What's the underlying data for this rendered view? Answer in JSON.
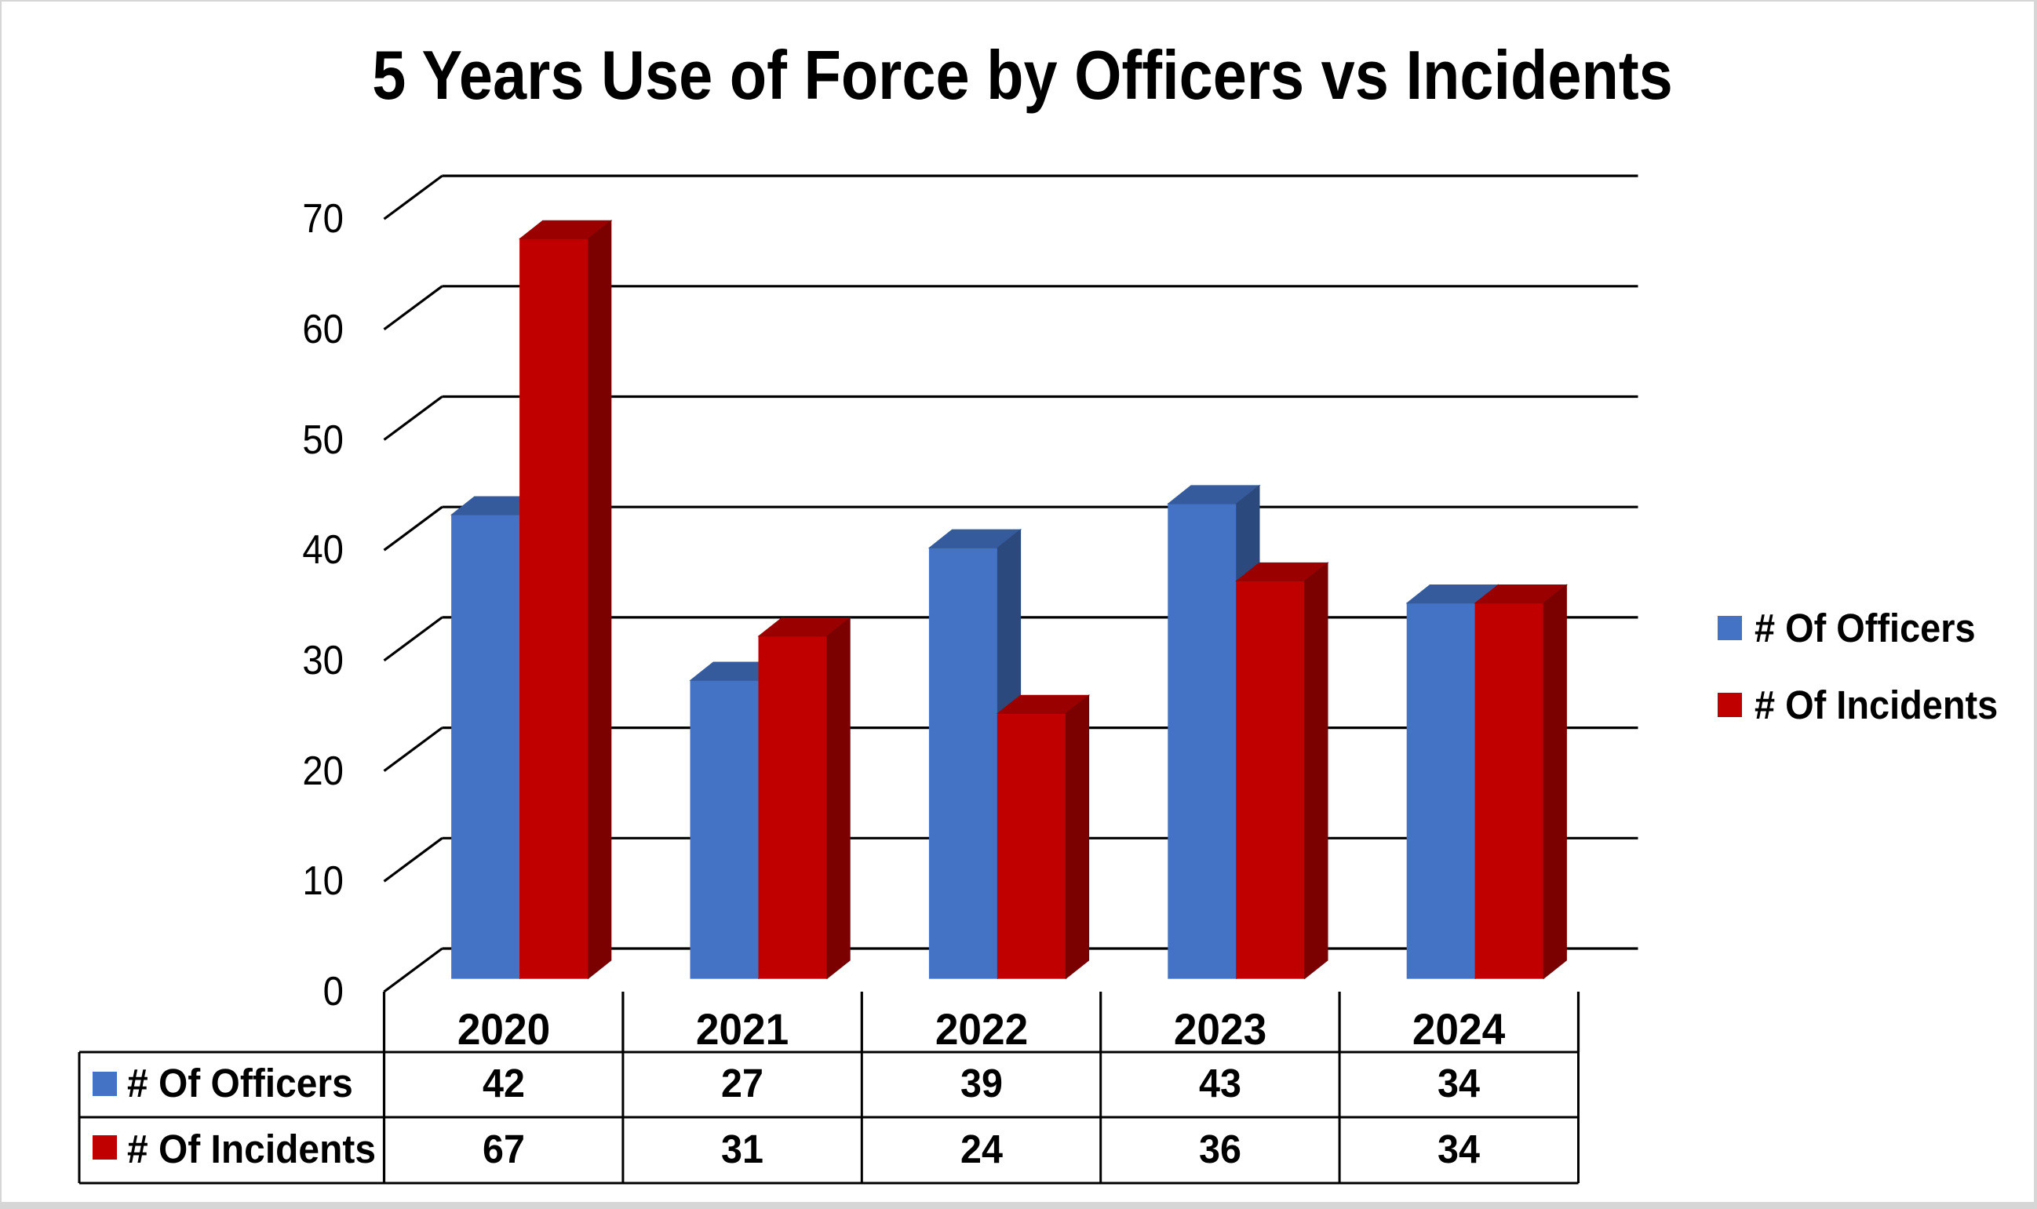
{
  "title": "5 Years Use of Force by Officers vs Incidents",
  "chart_data": {
    "type": "bar",
    "subtype": "3d-clustered-column",
    "title": "5 Years Use of Force by Officers vs Incidents",
    "categories": [
      "2020",
      "2021",
      "2022",
      "2023",
      "2024"
    ],
    "series": [
      {
        "name": "# Of Officers",
        "color": "#4472c4",
        "values": [
          42,
          27,
          39,
          43,
          34
        ]
      },
      {
        "name": "# Of Incidents",
        "color": "#c00000",
        "values": [
          67,
          31,
          24,
          36,
          34
        ]
      }
    ],
    "xlabel": "",
    "ylabel": "",
    "ylim": [
      0,
      70
    ],
    "yticks": [
      0,
      10,
      20,
      30,
      40,
      50,
      60,
      70
    ],
    "grid": true,
    "legend_position": "right",
    "data_table_shown": true
  },
  "legend": {
    "items": [
      {
        "label": "# Of Officers",
        "color": "#4472c4"
      },
      {
        "label": "# Of Incidents",
        "color": "#c00000"
      }
    ]
  },
  "data_table": {
    "columns": [
      "2020",
      "2021",
      "2022",
      "2023",
      "2024"
    ],
    "rows": [
      {
        "label": "# Of Officers",
        "color": "#4472c4",
        "values": [
          "42",
          "27",
          "39",
          "43",
          "34"
        ]
      },
      {
        "label": "# Of Incidents",
        "color": "#c00000",
        "values": [
          "67",
          "31",
          "24",
          "36",
          "34"
        ]
      }
    ]
  },
  "colors": {
    "officers_series": "#4472c4",
    "incidents_series": "#c00000",
    "gridline": "#000000",
    "text": "#000000",
    "background": "#ffffff",
    "frame": "#d6d6d6"
  }
}
